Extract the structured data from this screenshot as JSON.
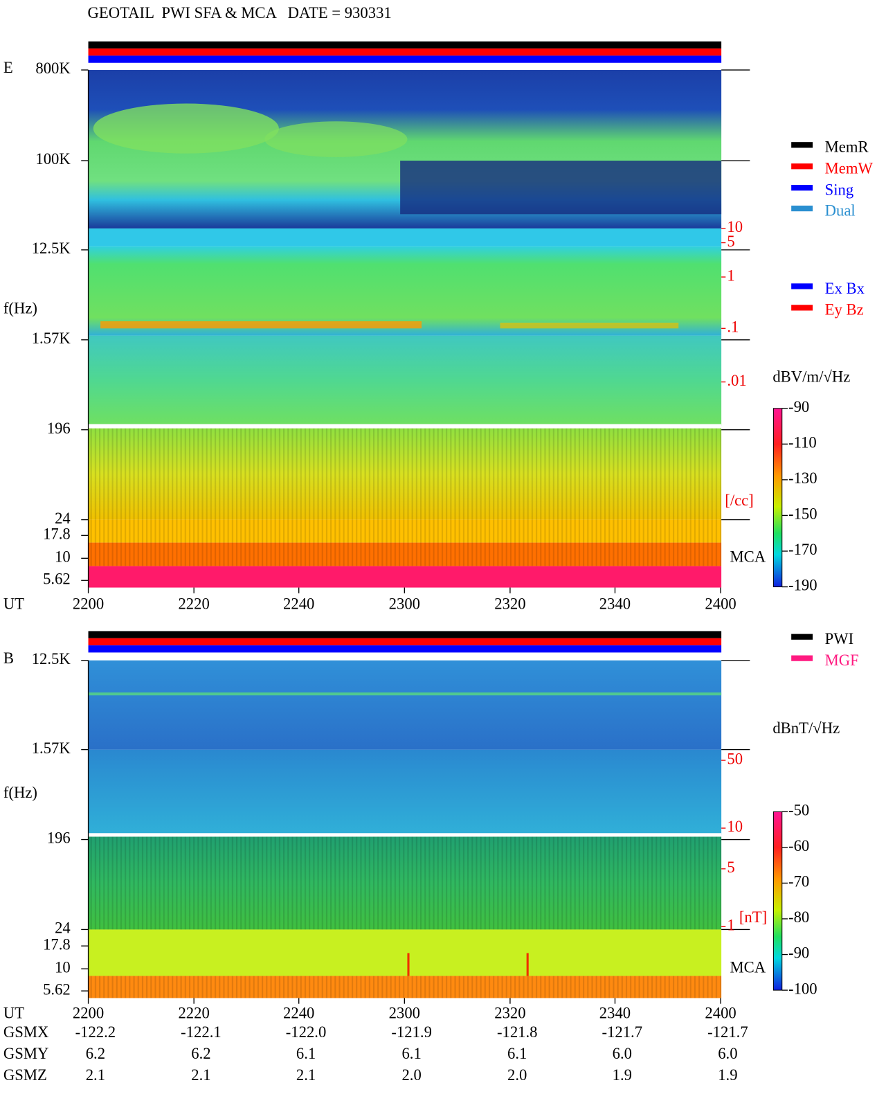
{
  "title": "GEOTAIL  PWI SFA & MCA   DATE = 930331",
  "panel_e": {
    "label": "E",
    "y_label": "f(Hz)",
    "x_label": "UT",
    "freq_ticks": [
      "800K",
      "100K",
      "12.5K",
      "1.57K",
      "196",
      "24",
      "17.8",
      "10",
      "5.62"
    ],
    "x_ticks": [
      "2200",
      "2220",
      "2240",
      "2300",
      "2320",
      "2340",
      "2400"
    ],
    "density_ticks": [
      "10",
      "5",
      "1",
      ".1",
      ".01"
    ],
    "density_unit": "[/cc]",
    "mca": "MCA",
    "legend_mode": [
      "MemR",
      "MemW",
      "Sing",
      "Dual"
    ],
    "legend_axes": [
      "Ex Bx",
      "Ey Bz"
    ],
    "colorbar_title": "dBV/m/√Hz",
    "colorbar_ticks": [
      "-90",
      "-110",
      "-130",
      "-150",
      "-170",
      "-190"
    ]
  },
  "panel_b": {
    "label": "B",
    "y_label": "f(Hz)",
    "x_label": "UT",
    "freq_ticks": [
      "12.5K",
      "1.57K",
      "196",
      "24",
      "17.8",
      "10",
      "5.62"
    ],
    "x_ticks": [
      "2200",
      "2220",
      "2240",
      "2300",
      "2320",
      "2340",
      "2400"
    ],
    "density_ticks": [
      "50",
      "10",
      "5",
      "1"
    ],
    "density_unit": "[nT]",
    "mca": "MCA",
    "legend_source": [
      "PWI",
      "MGF"
    ],
    "colorbar_title": "dBnT/√Hz",
    "colorbar_ticks": [
      "-50",
      "-60",
      "-70",
      "-80",
      "-90",
      "-100"
    ]
  },
  "orbit": [
    {
      "label": "GSMX",
      "values": [
        "-122.2",
        "-122.1",
        "-122.0",
        "-121.9",
        "-121.8",
        "-121.7",
        "-121.7"
      ]
    },
    {
      "label": "GSMY",
      "values": [
        "6.2",
        "6.2",
        "6.1",
        "6.1",
        "6.1",
        "6.0",
        "6.0"
      ]
    },
    {
      "label": "GSMZ",
      "values": [
        "2.1",
        "2.1",
        "2.1",
        "2.0",
        "2.0",
        "1.9",
        "1.9"
      ]
    }
  ]
}
